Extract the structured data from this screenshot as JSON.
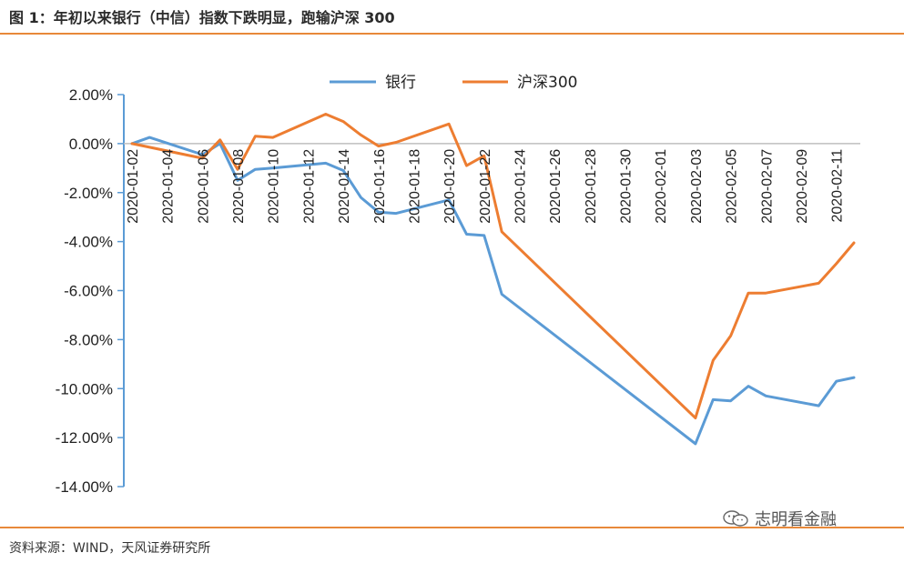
{
  "header": {
    "title": "图 1：年初以来银行（中信）指数下跌明显，跑输沪深 300"
  },
  "footer": {
    "source": "资料来源：WIND，天风证券研究所",
    "watermark": "志明看金融",
    "watermark_icon": "wechat-icon"
  },
  "colors": {
    "bank": "#5b9bd5",
    "hs300": "#ed7d31",
    "axis": "#5b9bd5",
    "rule": "#e8893a"
  },
  "chart_data": {
    "type": "line",
    "title": "",
    "ylim": [
      -14,
      2
    ],
    "y_ticks": [
      "2.00%",
      "0.00%",
      "-2.00%",
      "-4.00%",
      "-6.00%",
      "-8.00%",
      "-10.00%",
      "-12.00%",
      "-14.00%"
    ],
    "legend_position": "top",
    "x": [
      "2020-01-02",
      "2020-01-03",
      "2020-01-06",
      "2020-01-07",
      "2020-01-08",
      "2020-01-09",
      "2020-01-10",
      "2020-01-13",
      "2020-01-14",
      "2020-01-15",
      "2020-01-16",
      "2020-01-17",
      "2020-01-20",
      "2020-01-21",
      "2020-01-22",
      "2020-01-23",
      "2020-02-03",
      "2020-02-04",
      "2020-02-05",
      "2020-02-06",
      "2020-02-07",
      "2020-02-10",
      "2020-02-11",
      "2020-02-12"
    ],
    "x_tick_labels": [
      "2020-01-02",
      "2020-01-04",
      "2020-01-06",
      "2020-01-08",
      "2020-01-10",
      "2020-01-12",
      "2020-01-14",
      "2020-01-16",
      "2020-01-18",
      "2020-01-20",
      "2020-01-22",
      "2020-01-24",
      "2020-01-26",
      "2020-01-28",
      "2020-01-30",
      "2020-02-01",
      "2020-02-03",
      "2020-02-05",
      "2020-02-07",
      "2020-02-09",
      "2020-02-11"
    ],
    "series": [
      {
        "name": "银行",
        "values": [
          0.0,
          0.25,
          -0.45,
          0.0,
          -1.5,
          -1.05,
          -1.0,
          -0.8,
          -1.1,
          -2.2,
          -2.8,
          -2.85,
          -2.3,
          -3.7,
          -3.75,
          -6.15,
          -12.25,
          -10.45,
          -10.5,
          -9.9,
          -10.3,
          -10.7,
          -9.7,
          -9.55
        ]
      },
      {
        "name": "沪深300",
        "values": [
          0.0,
          -0.15,
          -0.6,
          0.15,
          -1.05,
          0.3,
          0.25,
          1.2,
          0.9,
          0.35,
          -0.1,
          0.05,
          0.8,
          -0.9,
          -0.5,
          -3.6,
          -11.2,
          -8.85,
          -7.85,
          -6.1,
          -6.1,
          -5.7,
          -4.9,
          -4.05
        ]
      }
    ]
  }
}
